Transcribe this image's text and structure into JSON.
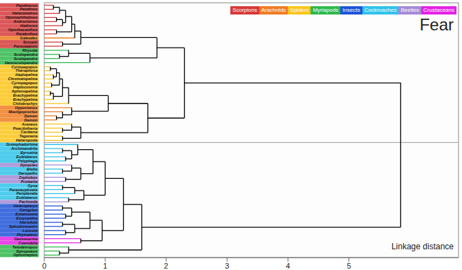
{
  "chart_data": {
    "type": "dendrogram",
    "title": "Fear",
    "xlabel": "Linkage distance",
    "xlim": [
      0,
      6.8
    ],
    "xticks": [
      0,
      1,
      2,
      3,
      4,
      5
    ],
    "groups": [
      {
        "name": "Scorpions",
        "color": "#d63a3a"
      },
      {
        "name": "Arachnids",
        "color": "#f07c22"
      },
      {
        "name": "Spiders",
        "color": "#fcc419"
      },
      {
        "name": "Myriapods",
        "color": "#2fb84b"
      },
      {
        "name": "Insects",
        "color": "#1f55d8"
      },
      {
        "name": "Cockroaches",
        "color": "#2fc3ea"
      },
      {
        "name": "Beetles",
        "color": "#a58bd6"
      },
      {
        "name": "Crustaceans",
        "color": "#e324e3"
      }
    ],
    "leaves": [
      {
        "name": "Pandinurus",
        "group": "Scorpions"
      },
      {
        "name": "Pandinus",
        "group": "Scorpions"
      },
      {
        "name": "Heterometrus",
        "group": "Scorpions"
      },
      {
        "name": "Opistophthalmus",
        "group": "Scorpions"
      },
      {
        "name": "Androctonus",
        "group": "Scorpions"
      },
      {
        "name": "Hadrurus",
        "group": "Scorpions"
      },
      {
        "name": "Opisthacanthus",
        "group": "Scorpions"
      },
      {
        "name": "Parabuthus",
        "group": "Scorpions"
      },
      {
        "name": "Galeodes",
        "group": "Arachnids"
      },
      {
        "name": "Scorpio",
        "group": "Scorpions"
      },
      {
        "name": "Paravaejovis",
        "group": "Scorpions"
      },
      {
        "name": "Rhysida",
        "group": "Myriapods"
      },
      {
        "name": "Scolopendra",
        "group": "Myriapods"
      },
      {
        "name": "Scolopendra",
        "group": "Myriapods"
      },
      {
        "name": "Hemiscolopendra",
        "group": "Myriapods"
      },
      {
        "name": "Cyriopagopus",
        "group": "Spiders"
      },
      {
        "name": "Theraphosa",
        "group": "Spiders"
      },
      {
        "name": "Haplopelma",
        "group": "Spiders"
      },
      {
        "name": "Chromatopelma",
        "group": "Spiders"
      },
      {
        "name": "Cyriopagopus",
        "group": "Spiders"
      },
      {
        "name": "Haplocosmia",
        "group": "Spiders"
      },
      {
        "name": "Aphonopelma",
        "group": "Spiders"
      },
      {
        "name": "Brachypelma",
        "group": "Spiders"
      },
      {
        "name": "Brachypelma",
        "group": "Spiders"
      },
      {
        "name": "Chilobrachys",
        "group": "Spiders"
      },
      {
        "name": "Hypoctonus",
        "group": "Arachnids"
      },
      {
        "name": "Mastigoproctus",
        "group": "Arachnids"
      },
      {
        "name": "Damon",
        "group": "Arachnids"
      },
      {
        "name": "Damon",
        "group": "Arachnids"
      },
      {
        "name": "Araneus",
        "group": "Spiders"
      },
      {
        "name": "Poecilotheria",
        "group": "Spiders"
      },
      {
        "name": "Caribena",
        "group": "Spiders"
      },
      {
        "name": "Tegenaria",
        "group": "Spiders"
      },
      {
        "name": "Heteropoda",
        "group": "Spiders"
      },
      {
        "name": "Gromphadorhina",
        "group": "Cockroaches"
      },
      {
        "name": "Archimandrita",
        "group": "Cockroaches"
      },
      {
        "name": "Byrsotria",
        "group": "Cockroaches"
      },
      {
        "name": "Eublaberus",
        "group": "Cockroaches"
      },
      {
        "name": "Polyphaga",
        "group": "Cockroaches"
      },
      {
        "name": "Dynastes",
        "group": "Beetles"
      },
      {
        "name": "Blatta",
        "group": "Cockroaches"
      },
      {
        "name": "Deropeltis",
        "group": "Cockroaches"
      },
      {
        "name": "Zophobas",
        "group": "Beetles"
      },
      {
        "name": "Protaetia",
        "group": "Beetles"
      },
      {
        "name": "Gyna",
        "group": "Cockroaches"
      },
      {
        "name": "Paranauphoeta",
        "group": "Cockroaches"
      },
      {
        "name": "Periplaneta",
        "group": "Cockroaches"
      },
      {
        "name": "Eublaberus",
        "group": "Cockroaches"
      },
      {
        "name": "Pachnoda",
        "group": "Beetles"
      },
      {
        "name": "Heteropteryx",
        "group": "Insects"
      },
      {
        "name": "Gongylus",
        "group": "Insects"
      },
      {
        "name": "Extatosoma",
        "group": "Insects"
      },
      {
        "name": "Eurycantha",
        "group": "Insects"
      },
      {
        "name": "Hierodula",
        "group": "Insects"
      },
      {
        "name": "Sphodromantis",
        "group": "Insects"
      },
      {
        "name": "Locusta",
        "group": "Insects"
      },
      {
        "name": "Phymateus",
        "group": "Insects"
      },
      {
        "name": "Geosesarma",
        "group": "Crustaceans"
      },
      {
        "name": "Coenobita",
        "group": "Crustaceans"
      },
      {
        "name": "Telodeinopus",
        "group": "Myriapods"
      },
      {
        "name": "Spiropoeus",
        "group": "Myriapods"
      },
      {
        "name": "Ophistreptus",
        "group": "Myriapods"
      }
    ],
    "tree": {
      "height": 5.85,
      "children": [
        {
          "height": 2.3,
          "children": [
            {
              "height": 1.85,
              "children": [
                {
                  "height": 0.6,
                  "children": [
                    {
                      "height": 0.5,
                      "children": [
                        {
                          "height": 0.45,
                          "children": [
                            {
                              "height": 0.35,
                              "children": [
                                {
                                  "height": 0.25,
                                  "children": [
                                    {
                                      "height": 0.15,
                                      "children": [
                                        0,
                                        1
                                      ]
                                    },
                                    2
                                  ]
                                },
                                {
                                  "height": 0.3,
                                  "children": [
                                    {
                                      "height": 0.2,
                                      "children": [
                                        3,
                                        4
                                      ]
                                    },
                                    5
                                  ]
                                }
                              ]
                            },
                            {
                              "height": 0.2,
                              "children": [
                                6,
                                7
                              ]
                            }
                          ]
                        },
                        8
                      ]
                    },
                    {
                      "height": 0.3,
                      "children": [
                        9,
                        10
                      ]
                    }
                  ]
                },
                {
                  "height": 0.75,
                  "children": [
                    {
                      "height": 0.4,
                      "children": [
                        11,
                        {
                          "height": 0.25,
                          "children": [
                            12,
                            13
                          ]
                        }
                      ]
                    },
                    14
                  ]
                }
              ]
            },
            {
              "height": 1.7,
              "children": [
                {
                  "height": 1.05,
                  "children": [
                    {
                      "height": 0.4,
                      "children": [
                        {
                          "height": 0.3,
                          "children": [
                            {
                              "height": 0.25,
                              "children": [
                                {
                                  "height": 0.2,
                                  "children": [
                                    {
                                      "height": 0.1,
                                      "children": [
                                        15,
                                        16
                                      ]
                                    },
                                    {
                                      "height": 0.15,
                                      "children": [
                                        17,
                                        18
                                      ]
                                    }
                                  ]
                                },
                                {
                                  "height": 0.12,
                                  "children": [
                                    19,
                                    20
                                  ]
                                }
                              ]
                            },
                            {
                              "height": 0.15,
                              "children": [
                                {
                                  "height": 0.1,
                                  "children": [
                                    21,
                                    22
                                  ]
                                },
                                23
                              ]
                            }
                          ]
                        },
                        24
                      ]
                    },
                    {
                      "height": 0.45,
                      "children": [
                        25,
                        {
                          "height": 0.3,
                          "children": [
                            26,
                            {
                              "height": 0.2,
                              "children": [
                                27,
                                28
                              ]
                            }
                          ]
                        }
                      ]
                    }
                  ]
                },
                {
                  "height": 0.6,
                  "children": [
                    {
                      "height": 0.45,
                      "children": [
                        29,
                        {
                          "height": 0.3,
                          "children": [
                            30,
                            31
                          ]
                        }
                      ]
                    },
                    {
                      "height": 0.3,
                      "children": [
                        32,
                        33
                      ]
                    }
                  ]
                }
              ]
            }
          ]
        },
        {
          "height": 1.6,
          "children": [
            {
              "height": 1.3,
              "children": [
                {
                  "height": 1.0,
                  "children": [
                    {
                      "height": 0.8,
                      "children": [
                        {
                          "height": 0.55,
                          "children": [
                            34,
                            {
                              "height": 0.45,
                              "children": [
                                {
                                  "height": 0.3,
                                  "children": [
                                    35,
                                    36
                                  ]
                                },
                                {
                                  "height": 0.35,
                                  "children": [
                                    37,
                                    38
                                  ]
                                }
                              ]
                            }
                          ]
                        },
                        {
                          "height": 0.6,
                          "children": [
                            {
                              "height": 0.45,
                              "children": [
                                39,
                                {
                                  "height": 0.3,
                                  "children": [
                                    40,
                                    41
                                  ]
                                }
                              ]
                            },
                            {
                              "height": 0.35,
                              "children": [
                                42,
                                43
                              ]
                            }
                          ]
                        }
                      ]
                    },
                    {
                      "height": 0.65,
                      "children": [
                        {
                          "height": 0.5,
                          "children": [
                            {
                              "height": 0.3,
                              "children": [
                                44,
                                45
                              ]
                            },
                            46
                          ]
                        },
                        {
                          "height": 0.4,
                          "children": [
                            47,
                            48
                          ]
                        }
                      ]
                    }
                  ]
                },
                {
                  "height": 0.95,
                  "children": [
                    {
                      "height": 0.75,
                      "children": [
                        {
                          "height": 0.45,
                          "children": [
                            {
                              "height": 0.3,
                              "children": [
                                49,
                                50
                              ]
                            },
                            {
                              "height": 0.35,
                              "children": [
                                51,
                                52
                              ]
                            }
                          ]
                        },
                        {
                          "height": 0.5,
                          "children": [
                            {
                              "height": 0.3,
                              "children": [
                                53,
                                54
                              ]
                            },
                            {
                              "height": 0.35,
                              "children": [
                                55,
                                56
                              ]
                            }
                          ]
                        }
                      ]
                    },
                    {
                      "height": 0.6,
                      "children": [
                        57,
                        58
                      ]
                    }
                  ]
                }
              ]
            },
            {
              "height": 0.4,
              "children": [
                59,
                {
                  "height": 0.25,
                  "children": [
                    60,
                    61
                  ]
                }
              ]
            }
          ]
        }
      ]
    }
  }
}
